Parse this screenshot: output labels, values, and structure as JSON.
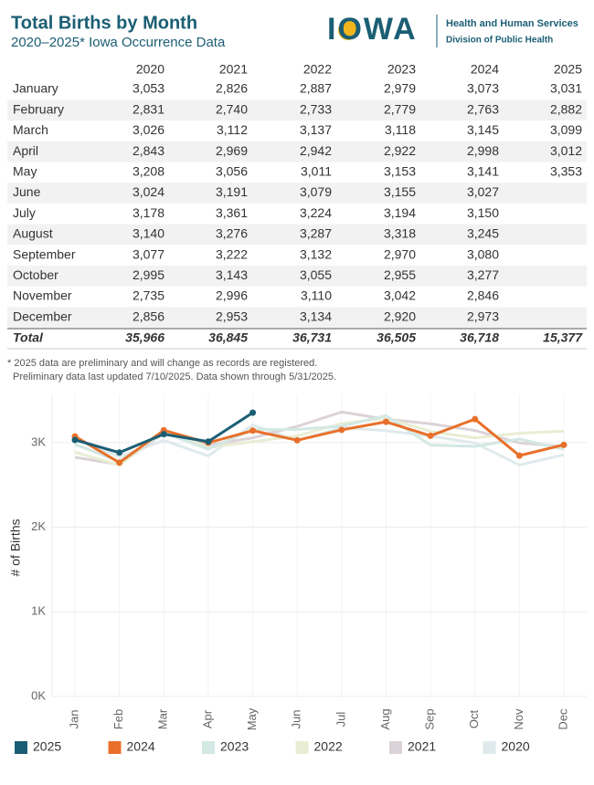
{
  "header": {
    "title": "Total Births by Month",
    "subtitle": "2020–2025* Iowa Occurrence Data",
    "logo": "IOWA",
    "agency": "Health and Human Services",
    "division": "Division of Public Health"
  },
  "table": {
    "columns": [
      "2020",
      "2021",
      "2022",
      "2023",
      "2024",
      "2025"
    ],
    "rows": [
      {
        "label": "January",
        "values": [
          "3,053",
          "2,826",
          "2,887",
          "2,979",
          "3,073",
          "3,031"
        ]
      },
      {
        "label": "February",
        "values": [
          "2,831",
          "2,740",
          "2,733",
          "2,779",
          "2,763",
          "2,882"
        ]
      },
      {
        "label": "March",
        "values": [
          "3,026",
          "3,112",
          "3,137",
          "3,118",
          "3,145",
          "3,099"
        ]
      },
      {
        "label": "April",
        "values": [
          "2,843",
          "2,969",
          "2,942",
          "2,922",
          "2,998",
          "3,012"
        ]
      },
      {
        "label": "May",
        "values": [
          "3,208",
          "3,056",
          "3,011",
          "3,153",
          "3,141",
          "3,353"
        ]
      },
      {
        "label": "June",
        "values": [
          "3,024",
          "3,191",
          "3,079",
          "3,155",
          "3,027"
        ]
      },
      {
        "label": "July",
        "values": [
          "3,178",
          "3,361",
          "3,224",
          "3,194",
          "3,150"
        ]
      },
      {
        "label": "August",
        "values": [
          "3,140",
          "3,276",
          "3,287",
          "3,318",
          "3,245"
        ]
      },
      {
        "label": "September",
        "values": [
          "3,077",
          "3,222",
          "3,132",
          "2,970",
          "3,080"
        ]
      },
      {
        "label": "October",
        "values": [
          "2,995",
          "3,143",
          "3,055",
          "2,955",
          "3,277"
        ]
      },
      {
        "label": "November",
        "values": [
          "2,735",
          "2,996",
          "3,110",
          "3,042",
          "2,846"
        ]
      },
      {
        "label": "December",
        "values": [
          "2,856",
          "2,953",
          "3,134",
          "2,920",
          "2,973"
        ]
      }
    ],
    "total": {
      "label": "Total",
      "values": [
        "35,966",
        "36,845",
        "36,731",
        "36,505",
        "36,718",
        "15,377"
      ]
    }
  },
  "notes": [
    "* 2025 data are preliminary and will change as records are registered.",
    "Preliminary data last updated 7/10/2025. Data shown through 5/31/2025."
  ],
  "chart_data": {
    "type": "line",
    "y_label": "# of Births",
    "categories": [
      "Jan",
      "Feb",
      "Mar",
      "Apr",
      "May",
      "Jun",
      "Jul",
      "Aug",
      "Sep",
      "Oct",
      "Nov",
      "Dec"
    ],
    "ylim": [
      0,
      3570
    ],
    "yticks": [
      {
        "value": 0,
        "label": "0K"
      },
      {
        "value": 1000,
        "label": "1K"
      },
      {
        "value": 2000,
        "label": "2K"
      },
      {
        "value": 3000,
        "label": "3K"
      }
    ],
    "grid": true,
    "series": [
      {
        "name": "2025",
        "color": "#1b5e74",
        "markers": true,
        "values": [
          3031,
          2882,
          3099,
          3012,
          3353,
          null,
          null,
          null,
          null,
          null,
          null,
          null
        ]
      },
      {
        "name": "2024",
        "color": "#e8702a",
        "markers": true,
        "values": [
          3073,
          2763,
          3145,
          2998,
          3141,
          3027,
          3150,
          3245,
          3080,
          3277,
          2846,
          2973
        ]
      },
      {
        "name": "2023",
        "color": "#d3e8e3",
        "markers": false,
        "values": [
          2979,
          2779,
          3118,
          2922,
          3153,
          3155,
          3194,
          3318,
          2970,
          2955,
          3042,
          2920
        ]
      },
      {
        "name": "2022",
        "color": "#e9edd3",
        "markers": false,
        "values": [
          2887,
          2733,
          3137,
          2942,
          3011,
          3079,
          3224,
          3287,
          3132,
          3055,
          3110,
          3134
        ]
      },
      {
        "name": "2021",
        "color": "#dbd3d8",
        "markers": false,
        "values": [
          2826,
          2740,
          3112,
          2969,
          3056,
          3191,
          3361,
          3276,
          3222,
          3143,
          2996,
          2953
        ]
      },
      {
        "name": "2020",
        "color": "#dfeaec",
        "markers": false,
        "values": [
          3053,
          2831,
          3026,
          2843,
          3208,
          3024,
          3178,
          3140,
          3077,
          2995,
          2735,
          2856
        ]
      }
    ]
  }
}
